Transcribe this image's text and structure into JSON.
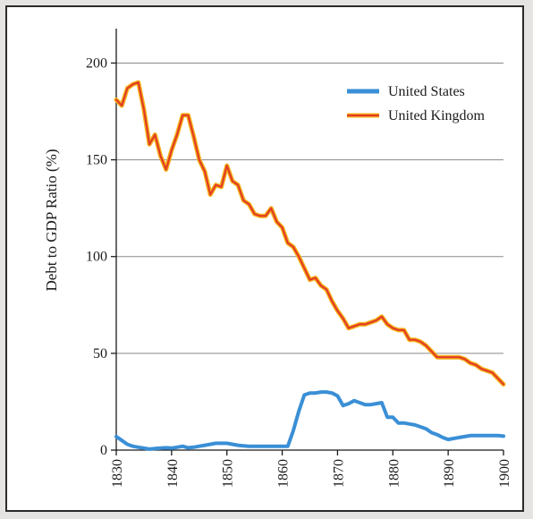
{
  "chart_data": {
    "type": "line",
    "title": "",
    "xlabel": "",
    "ylabel": "Debt to GDP Ratio (%)",
    "xlim": [
      1830,
      1900
    ],
    "ylim": [
      0,
      215
    ],
    "x_ticks": [
      1830,
      1840,
      1850,
      1860,
      1870,
      1880,
      1890,
      1900
    ],
    "y_ticks": [
      0,
      50,
      100,
      150,
      200
    ],
    "grid": "horizontal",
    "legend_position": "top-right",
    "series": [
      {
        "name": "United States",
        "color": "#3a8fd6",
        "x": [
          1830,
          1831,
          1832,
          1833,
          1834,
          1835,
          1836,
          1837,
          1838,
          1839,
          1840,
          1841,
          1842,
          1843,
          1844,
          1845,
          1846,
          1847,
          1848,
          1849,
          1850,
          1851,
          1852,
          1853,
          1854,
          1855,
          1856,
          1857,
          1858,
          1859,
          1860,
          1861,
          1862,
          1863,
          1864,
          1865,
          1866,
          1867,
          1868,
          1869,
          1870,
          1871,
          1872,
          1873,
          1874,
          1875,
          1876,
          1877,
          1878,
          1879,
          1880,
          1881,
          1882,
          1883,
          1884,
          1885,
          1886,
          1887,
          1888,
          1889,
          1890,
          1891,
          1892,
          1893,
          1894,
          1895,
          1896,
          1897,
          1898,
          1899,
          1900
        ],
        "values": [
          7,
          5,
          3,
          2,
          1.5,
          1,
          0.5,
          0.8,
          1,
          1.2,
          1,
          1.5,
          2,
          1.2,
          1.5,
          2,
          2.5,
          3,
          3.5,
          3.5,
          3.5,
          3,
          2.5,
          2.2,
          2,
          2,
          2,
          2,
          2,
          2,
          2,
          2,
          10,
          20,
          28.5,
          29.5,
          29.5,
          30,
          30,
          29.5,
          28,
          23,
          24,
          25.5,
          24.5,
          23.5,
          23.5,
          24,
          24.5,
          17,
          17,
          14,
          14,
          13.5,
          13,
          12,
          11,
          9,
          8,
          6.5,
          5.5,
          6,
          6.5,
          7,
          7.5,
          7.5,
          7.5,
          7.5,
          7.5,
          7.5,
          7.2
        ]
      },
      {
        "name": "United Kingdom",
        "color": "#e23b24",
        "highlight_color": "#f5b21a",
        "x": [
          1830,
          1831,
          1832,
          1833,
          1834,
          1835,
          1836,
          1837,
          1838,
          1839,
          1840,
          1841,
          1842,
          1843,
          1844,
          1845,
          1846,
          1847,
          1848,
          1849,
          1850,
          1851,
          1852,
          1853,
          1854,
          1855,
          1856,
          1857,
          1858,
          1859,
          1860,
          1861,
          1862,
          1863,
          1864,
          1865,
          1866,
          1867,
          1868,
          1869,
          1870,
          1871,
          1872,
          1873,
          1874,
          1875,
          1876,
          1877,
          1878,
          1879,
          1880,
          1881,
          1882,
          1883,
          1884,
          1885,
          1886,
          1887,
          1888,
          1889,
          1890,
          1891,
          1892,
          1893,
          1894,
          1895,
          1896,
          1897,
          1898,
          1899,
          1900
        ],
        "values": [
          181,
          178,
          187,
          189,
          190,
          176,
          158,
          163,
          152,
          145,
          155,
          163,
          173,
          173,
          162,
          150,
          144,
          132,
          137,
          136,
          147,
          139,
          137,
          129,
          127,
          122,
          121,
          121,
          125,
          118,
          115,
          107,
          105,
          100,
          94,
          88,
          89,
          85,
          83,
          77,
          72,
          68,
          63,
          64,
          65,
          65,
          66,
          67,
          69,
          65,
          63,
          62,
          62,
          57,
          57,
          56,
          54,
          51,
          48,
          48,
          48,
          48,
          48,
          47,
          45,
          44,
          42,
          41,
          40,
          37,
          34
        ]
      }
    ]
  }
}
